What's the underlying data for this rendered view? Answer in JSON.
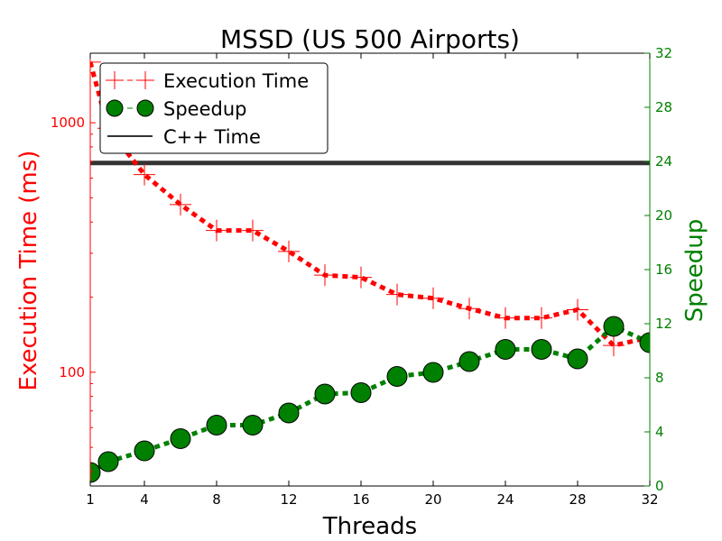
{
  "chart_data": {
    "type": "line",
    "title": "MSSD (US 500 Airports)",
    "xlabel": "Threads",
    "ylabel_left": "Execution Time (ms)",
    "ylabel_right": "Speedup",
    "x_ticks": [
      1,
      4,
      8,
      12,
      16,
      20,
      24,
      28,
      32
    ],
    "xlim": [
      1,
      32
    ],
    "y_left": {
      "scale": "log",
      "lim": [
        35,
        1900
      ],
      "ticks": [
        100,
        1000
      ],
      "tick_labels": [
        "100",
        "1000"
      ]
    },
    "y_right": {
      "scale": "linear",
      "lim": [
        0,
        32
      ],
      "ticks": [
        0,
        4,
        8,
        12,
        16,
        20,
        24,
        28,
        32
      ]
    },
    "legend_position": "top-left",
    "colors": {
      "time": "#ff0000",
      "speedup": "#008000",
      "cpp": "#333333"
    },
    "series": [
      {
        "name": "Execution Time",
        "axis": "left",
        "color": "#ff0000",
        "marker": "plus",
        "line": "dashed",
        "x": [
          1,
          2,
          4,
          6,
          8,
          10,
          12,
          14,
          16,
          18,
          20,
          22,
          24,
          26,
          28,
          30,
          32
        ],
        "y": [
          1750,
          950,
          620,
          470,
          370,
          370,
          305,
          245,
          240,
          205,
          198,
          180,
          165,
          165,
          178,
          128,
          138
        ]
      },
      {
        "name": "Speedup",
        "axis": "right",
        "color": "#008000",
        "marker": "circle",
        "line": "dashed",
        "x": [
          1,
          2,
          4,
          6,
          8,
          10,
          12,
          14,
          16,
          18,
          20,
          22,
          24,
          26,
          28,
          30,
          32
        ],
        "y": [
          1.0,
          1.8,
          2.6,
          3.5,
          4.5,
          4.5,
          5.4,
          6.8,
          6.9,
          8.1,
          8.4,
          9.2,
          10.1,
          10.1,
          9.4,
          11.8,
          10.6
        ]
      },
      {
        "name": "C++ Time",
        "axis": "left",
        "color": "#333333",
        "line": "solid",
        "y_constant": 690
      }
    ]
  }
}
